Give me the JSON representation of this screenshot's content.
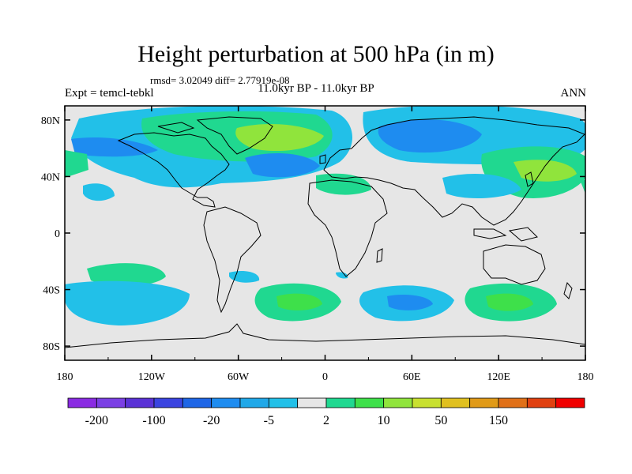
{
  "title": "Height perturbation at 500 hPa (in m)",
  "stats": "rmsd= 3.02049 diff= 2.77919e-08",
  "expt": "Expt = temcl-tebkl",
  "period": "11.0kyr BP - 11.0kyr BP",
  "season": "ANN",
  "x_ticks": [
    "180",
    "120W",
    "60W",
    "0",
    "60E",
    "120E",
    "180"
  ],
  "y_ticks": [
    "80N",
    "40N",
    "0",
    "40S",
    "80S"
  ],
  "colorbar": {
    "labels": [
      "-200",
      "-100",
      "-20",
      "-5",
      "2",
      "10",
      "50",
      "150"
    ],
    "colors": [
      "#8a2be2",
      "#7b3fe4",
      "#5a32d6",
      "#3a44e0",
      "#1e66e6",
      "#1e8cf0",
      "#20a8e8",
      "#22c0e8",
      "#e6e6e6",
      "#20d890",
      "#3ee04a",
      "#90e43c",
      "#c8e030",
      "#e0c020",
      "#e09a18",
      "#e07018",
      "#e04010",
      "#f00000"
    ]
  }
}
